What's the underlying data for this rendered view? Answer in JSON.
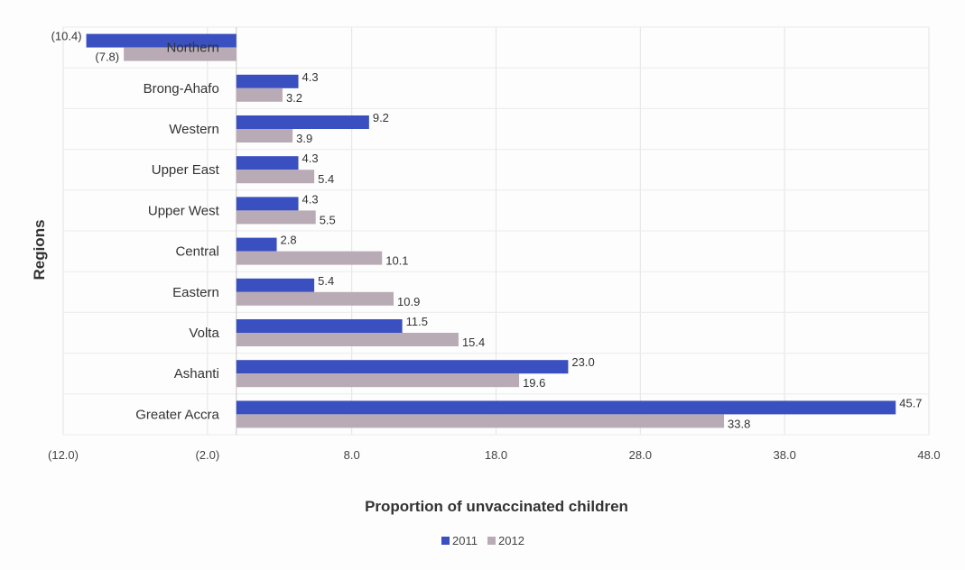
{
  "chart_data": {
    "type": "bar",
    "orientation": "horizontal",
    "categories": [
      "Greater Accra",
      "Ashanti",
      "Volta",
      "Eastern",
      "Central",
      "Upper West",
      "Upper East",
      "Western",
      "Brong-Ahafo",
      "Northern"
    ],
    "series": [
      {
        "name": "2011",
        "color": "#3a4fc0",
        "values": [
          45.7,
          23.0,
          11.5,
          5.4,
          2.8,
          4.3,
          4.3,
          9.2,
          4.3,
          -10.4
        ],
        "labels": [
          "45.7",
          "23.0",
          "11.5",
          "5.4",
          "2.8",
          "4.3",
          "4.3",
          "9.2",
          "4.3",
          "(10.4)"
        ]
      },
      {
        "name": "2012",
        "color": "#b9abb5",
        "values": [
          33.8,
          19.6,
          15.4,
          10.9,
          10.1,
          5.5,
          5.4,
          3.9,
          3.2,
          -7.8
        ],
        "labels": [
          "33.8",
          "19.6",
          "15.4",
          "10.9",
          "10.1",
          "5.5",
          "5.4",
          "3.9",
          "3.2",
          "(7.8)"
        ]
      }
    ],
    "xlabel": "Proportion of unvaccinated children",
    "ylabel": "Regions",
    "xlim": [
      -12,
      48
    ],
    "xticks": [
      -12,
      -2,
      8,
      18,
      28,
      38,
      48
    ],
    "xtick_labels": [
      "(12.0)",
      "(2.0)",
      "8.0",
      "18.0",
      "28.0",
      "38.0",
      "48.0"
    ],
    "grid": true,
    "legend_position": "bottom"
  }
}
